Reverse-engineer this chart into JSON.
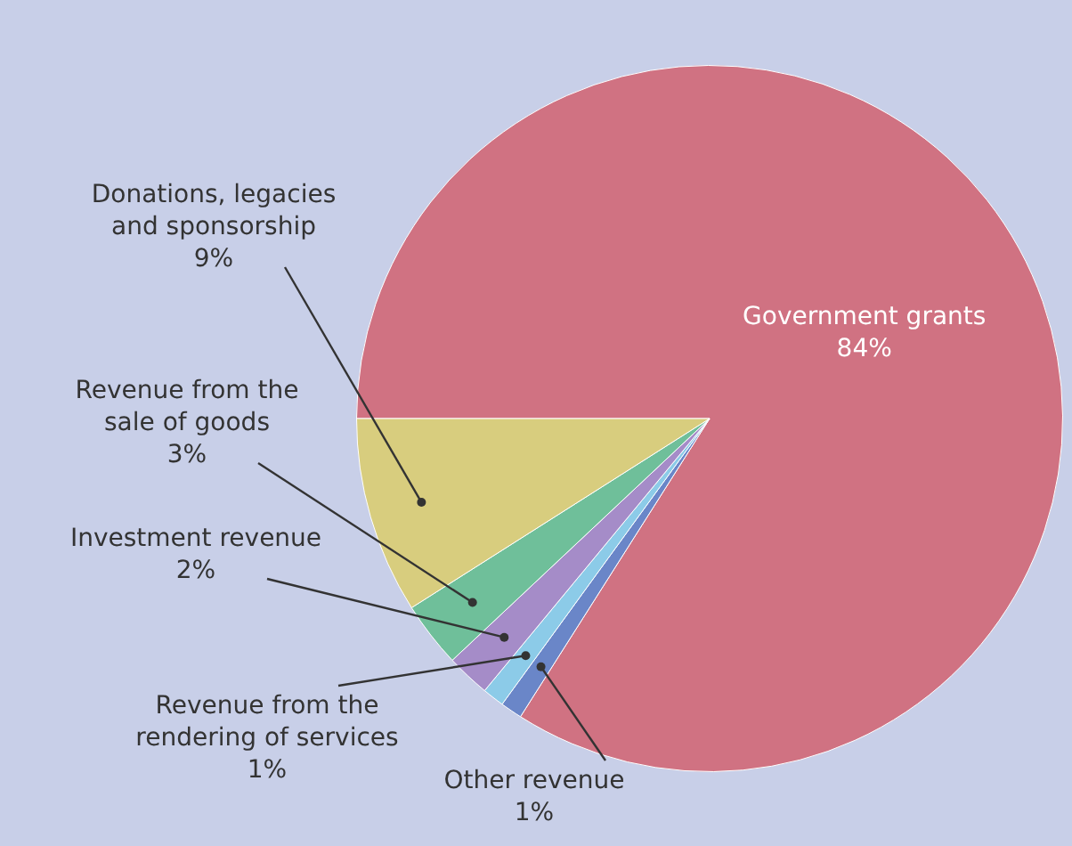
{
  "chart_data": {
    "type": "pie",
    "categories": [
      "Government grants",
      "Other revenue",
      "Revenue from the rendering of services",
      "Investment revenue",
      "Revenue from the sale of goods",
      "Donations, legacies and sponsorship"
    ],
    "values": [
      84,
      1,
      1,
      2,
      3,
      9
    ],
    "colors": [
      "#d07282",
      "#6a86c8",
      "#8ccbe8",
      "#a58cc8",
      "#6fbf9a",
      "#d8cd7e"
    ],
    "value_labels": [
      "84%",
      "1%",
      "1%",
      "2%",
      "3%",
      "9%"
    ],
    "legend": false
  }
}
